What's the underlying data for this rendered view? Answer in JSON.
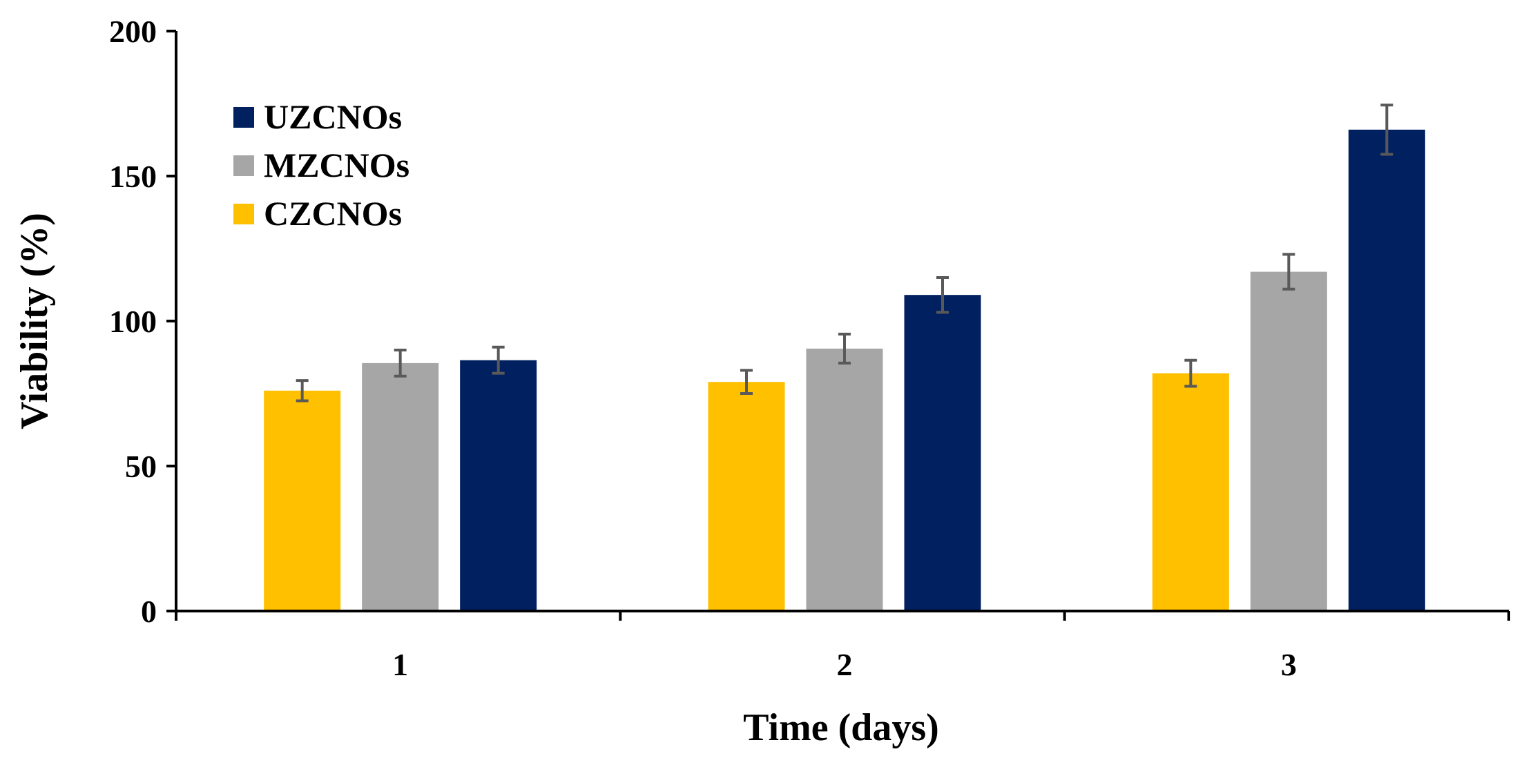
{
  "chart_data": {
    "type": "bar",
    "title": "",
    "xlabel": "Time (days)",
    "ylabel": "Viability (%)",
    "categories": [
      "1",
      "2",
      "3"
    ],
    "ylim": [
      0,
      200
    ],
    "yticks": [
      "0",
      "50",
      "100",
      "150",
      "200"
    ],
    "ytick_values": [
      0,
      50,
      100,
      150,
      200
    ],
    "grid": false,
    "legend_position": "top-left",
    "series": [
      {
        "name": "CZCNOs",
        "color": "#FFC000",
        "values": [
          76,
          79,
          82
        ],
        "errors": [
          3.5,
          4,
          4.5
        ]
      },
      {
        "name": "MZCNOs",
        "color": "#A6A6A6",
        "values": [
          85.5,
          90.5,
          117
        ],
        "errors": [
          4.5,
          5,
          6
        ]
      },
      {
        "name": "UZCNOs",
        "color": "#002060",
        "values": [
          86.5,
          109,
          166
        ],
        "errors": [
          4.5,
          6,
          8.5
        ]
      }
    ],
    "legend_order": [
      "UZCNOs",
      "MZCNOs",
      "CZCNOs"
    ],
    "error_bar_color": "#595959"
  }
}
